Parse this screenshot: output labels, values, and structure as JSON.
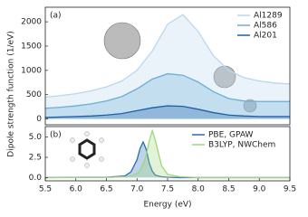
{
  "chart_data": [
    {
      "type": "area",
      "panel_label": "(a)",
      "ylabel": "Dipole strength function (1/eV)",
      "x": [
        5.5,
        5.75,
        6.0,
        6.25,
        6.5,
        6.75,
        7.0,
        7.25,
        7.5,
        7.75,
        8.0,
        8.25,
        8.5,
        8.75,
        9.0,
        9.25,
        9.5
      ],
      "series": [
        {
          "name": "Al1289",
          "color": "#b9d7ee",
          "values": [
            450,
            480,
            520,
            580,
            660,
            780,
            1000,
            1400,
            1950,
            2150,
            1800,
            1300,
            1000,
            850,
            780,
            740,
            720
          ]
        },
        {
          "name": "Al586",
          "color": "#6aaed6",
          "values": [
            220,
            240,
            270,
            310,
            370,
            460,
            620,
            820,
            930,
            900,
            760,
            560,
            420,
            370,
            360,
            360,
            360
          ]
        },
        {
          "name": "Al201",
          "color": "#1f5fa8",
          "values": [
            30,
            40,
            50,
            60,
            80,
            110,
            170,
            230,
            270,
            260,
            200,
            130,
            80,
            60,
            50,
            50,
            50
          ]
        }
      ],
      "xlim": [
        5.5,
        9.5
      ],
      "ylim": [
        -120,
        2300
      ],
      "yticks": [
        0,
        500,
        1000,
        1500,
        2000
      ],
      "legend": "upper right"
    },
    {
      "type": "area",
      "panel_label": "(b)",
      "xlabel": "Energy (eV)",
      "x": [
        5.5,
        6.5,
        6.8,
        6.9,
        7.0,
        7.05,
        7.1,
        7.15,
        7.2,
        7.25,
        7.3,
        7.4,
        7.5,
        7.7,
        8.0,
        9.5
      ],
      "series": [
        {
          "name": "PBE, GPAW",
          "color": "#2b6cb0",
          "values": [
            0,
            0.05,
            0.2,
            0.7,
            2.2,
            3.6,
            4.4,
            3.5,
            1.8,
            0.8,
            0.3,
            0.1,
            0.05,
            0,
            0,
            0
          ]
        },
        {
          "name": "B3LYP, NWChem",
          "color": "#9fd67f",
          "values": [
            0,
            0.02,
            0.1,
            0.2,
            0.5,
            0.9,
            1.6,
            2.8,
            4.5,
            5.8,
            4.6,
            1.5,
            0.4,
            0.1,
            0,
            0
          ]
        }
      ],
      "xlim": [
        5.5,
        9.5
      ],
      "ylim": [
        -0.4,
        6.3
      ],
      "xticks": [
        5.5,
        {
          "value": 6,
          "label": "6.0"
        },
        6.5,
        {
          "value": 7,
          "label": "7.0"
        },
        7.5,
        {
          "value": 8,
          "label": "8.0"
        },
        8.5,
        {
          "value": 9,
          "label": "9.0"
        },
        9.5
      ],
      "yticks": [
        {
          "value": 0,
          "label": "0.0"
        },
        2.5,
        {
          "value": 5,
          "label": "5.0"
        }
      ],
      "legend": "upper right"
    }
  ]
}
